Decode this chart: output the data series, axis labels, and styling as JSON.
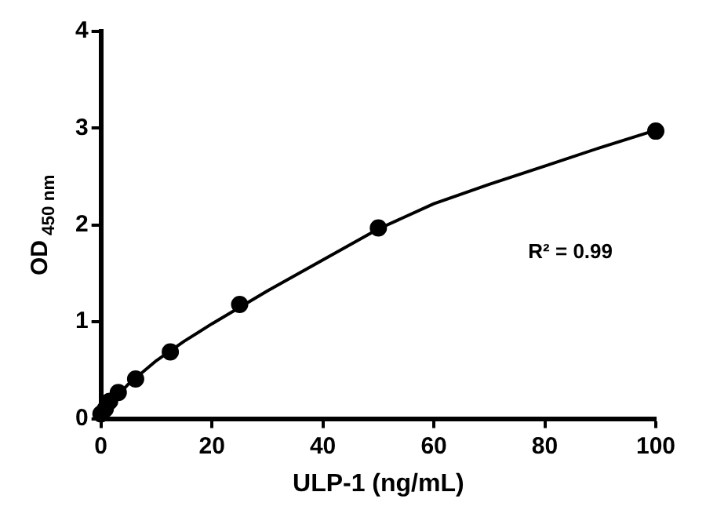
{
  "chart_data": {
    "type": "scatter",
    "xlabel": "ULP-1 (ng/mL)",
    "ylabel": "OD$_{450 nm}$",
    "annotations": [
      "R² = 0.99"
    ],
    "xlim": [
      0,
      100
    ],
    "xticks": [
      0,
      20,
      40,
      60,
      80,
      100
    ],
    "ylim": [
      0,
      4
    ],
    "yticks": [
      0,
      1,
      2,
      3,
      4
    ],
    "grid": false,
    "legend": false,
    "marker": "circle",
    "series": [
      {
        "color": "#000000",
        "x": [
          0,
          0.78,
          1.56,
          3.125,
          6.25,
          12.5,
          25,
          50,
          100
        ],
        "values": [
          0.05,
          0.1,
          0.18,
          0.27,
          0.41,
          0.69,
          1.18,
          1.97,
          2.97
        ]
      },
      {
        "type": "line",
        "color": "#000000",
        "marker": "none",
        "x": [
          0,
          2,
          5,
          10,
          15,
          20,
          30,
          40,
          50,
          60,
          70,
          80,
          90,
          100
        ],
        "values": [
          0.04,
          0.18,
          0.36,
          0.6,
          0.8,
          0.98,
          1.32,
          1.64,
          1.96,
          2.22,
          2.42,
          2.61,
          2.8,
          2.98
        ]
      }
    ]
  }
}
